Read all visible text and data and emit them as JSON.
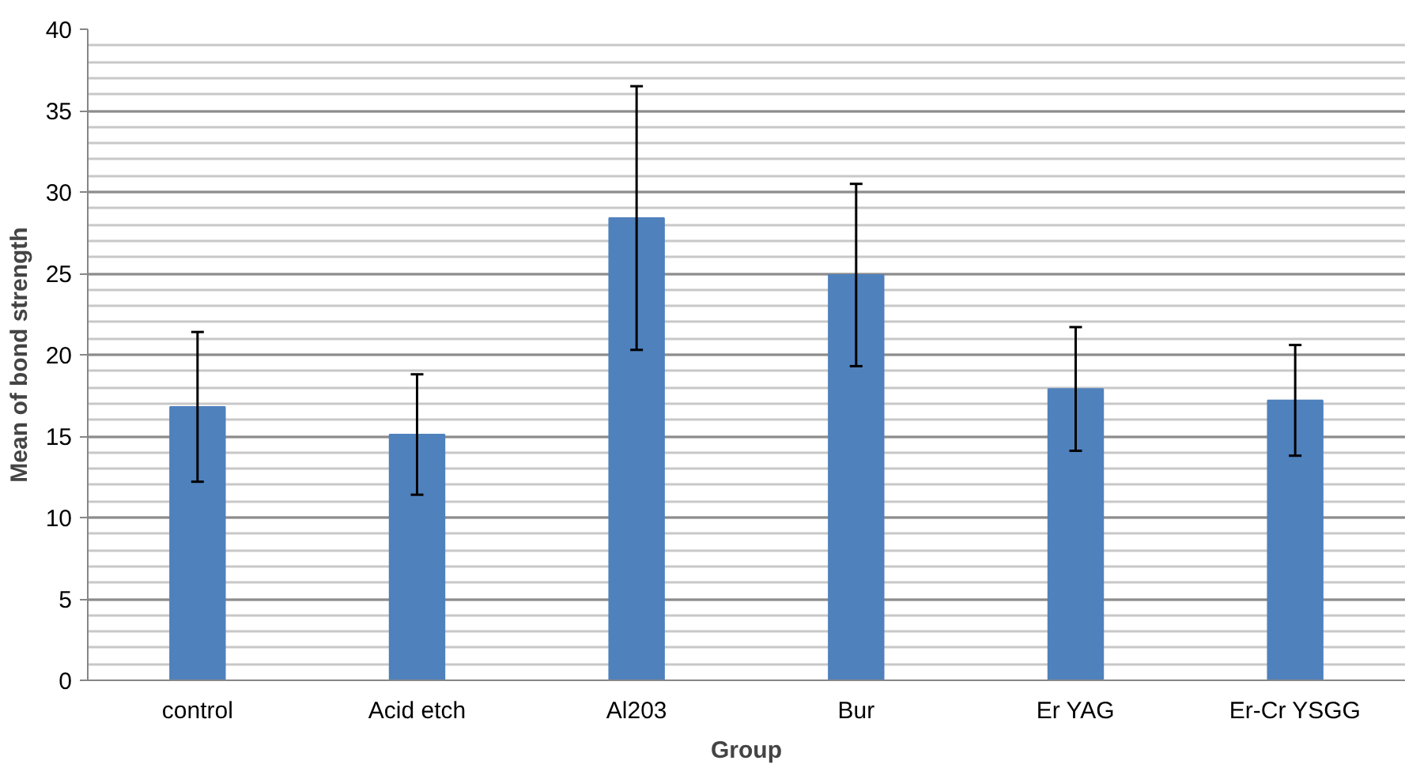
{
  "chart_data": {
    "type": "bar",
    "xlabel": "Group",
    "ylabel": "Mean of bond strength",
    "categories": [
      "control",
      "Acid etch",
      "Al203",
      "Bur",
      "Er YAG",
      "Er-Cr YSGG"
    ],
    "values": [
      16.8,
      15.1,
      28.4,
      24.9,
      17.9,
      17.2
    ],
    "errors": [
      4.6,
      3.7,
      8.1,
      5.6,
      3.8,
      3.4
    ],
    "color": "#4f81bd",
    "ylim": [
      0,
      40
    ],
    "yticks": [
      0,
      5,
      10,
      15,
      20,
      25,
      30,
      35,
      40
    ],
    "grid": "y"
  }
}
